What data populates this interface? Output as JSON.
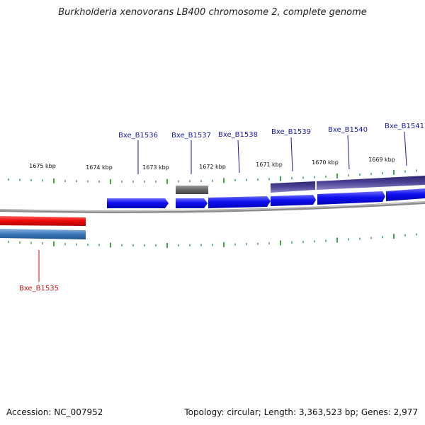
{
  "title": "Burkholderia xenovorans LB400 chromosome 2, complete genome",
  "footer": {
    "accession": "Accession: NC_007952",
    "stats": "Topology: circular; Length: 3,363,523 bp; Genes: 2,977"
  },
  "colors": {
    "backbone": "#8a8a8a",
    "forward_cds": "#1c1cf0",
    "reverse_cds": "#ee1111",
    "reverse_gene": "#3f7ab8",
    "rna": "#6a6a6a",
    "forward_gene": "#4b3f8f",
    "ticks": "#178a17",
    "forward_label": "#1a1aa8",
    "reverse_label": "#cc1111"
  },
  "kbp_labels": [
    "1675 kbp",
    "1674 kbp",
    "1673 kbp",
    "1672 kbp",
    "1671 kbp",
    "1670 kbp",
    "1669 kbp"
  ],
  "gene_labels": {
    "forward": [
      "Bxe_B1536",
      "Bxe_B1537",
      "Bxe_B1538",
      "Bxe_B1539",
      "Bxe_B1540",
      "Bxe_B1541"
    ],
    "reverse": [
      "Bxe_B1535"
    ]
  }
}
